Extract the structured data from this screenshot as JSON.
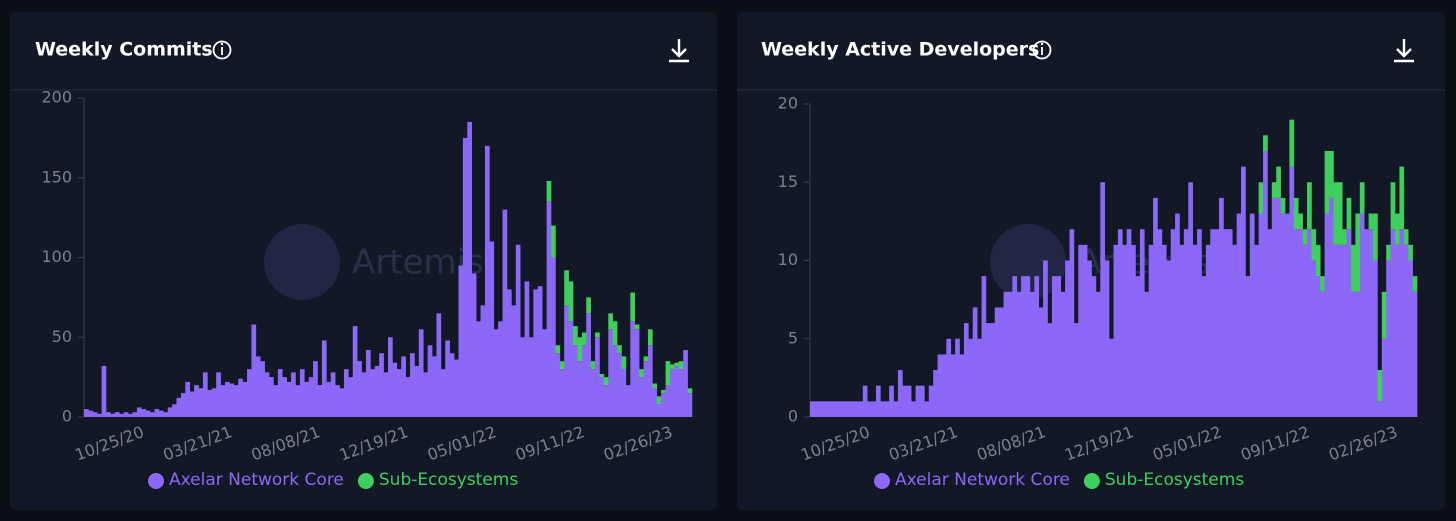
{
  "chart_data": [
    {
      "type": "bar",
      "stacked": true,
      "title": "Weekly Commits",
      "watermark": "Artemis",
      "categories": [
        null,
        null,
        null,
        null,
        null,
        null,
        null,
        null,
        null,
        null,
        null,
        null,
        null,
        "10/25/20",
        null,
        null,
        null,
        null,
        null,
        null,
        null,
        null,
        null,
        null,
        null,
        null,
        null,
        null,
        null,
        null,
        null,
        null,
        null,
        "03/21/21",
        null,
        null,
        null,
        null,
        null,
        null,
        null,
        null,
        null,
        null,
        null,
        null,
        null,
        null,
        null,
        null,
        null,
        null,
        null,
        "08/08/21",
        null,
        null,
        null,
        null,
        null,
        null,
        null,
        null,
        null,
        null,
        null,
        null,
        null,
        null,
        null,
        null,
        null,
        null,
        null,
        "12/19/21",
        null,
        null,
        null,
        null,
        null,
        null,
        null,
        null,
        null,
        null,
        null,
        null,
        null,
        null,
        null,
        null,
        null,
        null,
        null,
        "05/01/22",
        null,
        null,
        null,
        null,
        null,
        null,
        null,
        null,
        null,
        null,
        null,
        null,
        null,
        null,
        null,
        null,
        null,
        null,
        null,
        "09/11/22",
        null,
        null,
        null,
        null,
        null,
        null,
        null,
        null,
        null,
        null,
        null,
        null,
        null,
        null,
        null,
        null,
        null,
        null,
        null,
        "02/26/23",
        null,
        null,
        null,
        null
      ],
      "series": [
        {
          "name": "Axelar Network Core",
          "color": "#8b68f7",
          "values": [
            5,
            4,
            3,
            2,
            32,
            3,
            2,
            3,
            2,
            3,
            2,
            3,
            6,
            5,
            4,
            3,
            5,
            4,
            3,
            6,
            8,
            12,
            15,
            22,
            16,
            20,
            18,
            28,
            17,
            18,
            28,
            20,
            22,
            21,
            20,
            24,
            22,
            30,
            58,
            38,
            35,
            28,
            25,
            20,
            30,
            25,
            22,
            28,
            20,
            30,
            22,
            25,
            35,
            20,
            48,
            22,
            28,
            20,
            18,
            30,
            25,
            57,
            35,
            28,
            42,
            30,
            32,
            40,
            28,
            50,
            34,
            30,
            38,
            25,
            40,
            32,
            55,
            28,
            45,
            38,
            65,
            30,
            48,
            40,
            36,
            95,
            175,
            185,
            90,
            60,
            70,
            170,
            110,
            55,
            60,
            130,
            80,
            70,
            108,
            50,
            85,
            50,
            80,
            82,
            55,
            135,
            100,
            40,
            30,
            70,
            60,
            45,
            35,
            45,
            65,
            30,
            50,
            25,
            20,
            55,
            45,
            40,
            30,
            20,
            60,
            55,
            25,
            35,
            45,
            18,
            8,
            15,
            20,
            30,
            32,
            30,
            42,
            15
          ]
        },
        {
          "name": "Sub-Ecosystems",
          "color": "#3ecf5c",
          "values": [
            0,
            0,
            0,
            0,
            0,
            0,
            0,
            0,
            0,
            0,
            0,
            0,
            0,
            0,
            0,
            0,
            0,
            0,
            0,
            0,
            0,
            0,
            0,
            0,
            0,
            0,
            0,
            0,
            0,
            0,
            0,
            0,
            0,
            0,
            0,
            0,
            0,
            0,
            0,
            0,
            0,
            0,
            0,
            0,
            0,
            0,
            0,
            0,
            0,
            0,
            0,
            0,
            0,
            0,
            0,
            0,
            0,
            0,
            0,
            0,
            0,
            0,
            0,
            0,
            0,
            0,
            0,
            0,
            0,
            0,
            0,
            0,
            0,
            0,
            0,
            0,
            0,
            0,
            0,
            0,
            0,
            0,
            0,
            0,
            0,
            0,
            0,
            0,
            0,
            0,
            0,
            0,
            0,
            0,
            0,
            0,
            0,
            0,
            0,
            0,
            0,
            0,
            0,
            0,
            0,
            13,
            20,
            5,
            5,
            22,
            25,
            12,
            15,
            8,
            10,
            5,
            3,
            2,
            5,
            10,
            15,
            5,
            8,
            0,
            18,
            3,
            5,
            3,
            10,
            3,
            5,
            2,
            15,
            3,
            2,
            5,
            0,
            3
          ]
        }
      ],
      "ylim": [
        0,
        200
      ],
      "yticks": [
        0,
        50,
        100,
        150,
        200
      ]
    },
    {
      "type": "bar",
      "stacked": true,
      "title": "Weekly Active Developers",
      "watermark": "Artemis",
      "categories": [
        null,
        null,
        null,
        null,
        null,
        null,
        null,
        null,
        null,
        null,
        null,
        null,
        null,
        "10/25/20",
        null,
        null,
        null,
        null,
        null,
        null,
        null,
        null,
        null,
        null,
        null,
        null,
        null,
        null,
        null,
        null,
        null,
        null,
        null,
        "03/21/21",
        null,
        null,
        null,
        null,
        null,
        null,
        null,
        null,
        null,
        null,
        null,
        null,
        null,
        null,
        null,
        null,
        null,
        null,
        null,
        "08/08/21",
        null,
        null,
        null,
        null,
        null,
        null,
        null,
        null,
        null,
        null,
        null,
        null,
        null,
        null,
        null,
        null,
        null,
        null,
        null,
        "12/19/21",
        null,
        null,
        null,
        null,
        null,
        null,
        null,
        null,
        null,
        null,
        null,
        null,
        null,
        null,
        null,
        null,
        null,
        null,
        null,
        "05/01/22",
        null,
        null,
        null,
        null,
        null,
        null,
        null,
        null,
        null,
        null,
        null,
        null,
        null,
        null,
        null,
        null,
        null,
        null,
        null,
        "09/11/22",
        null,
        null,
        null,
        null,
        null,
        null,
        null,
        null,
        null,
        null,
        null,
        null,
        null,
        null,
        null,
        null,
        null,
        null,
        null,
        "02/26/23",
        null,
        null,
        null,
        null
      ],
      "series": [
        {
          "name": "Axelar Network Core",
          "color": "#8b68f7",
          "values": [
            1,
            1,
            1,
            1,
            1,
            1,
            1,
            1,
            1,
            1,
            1,
            1,
            2,
            1,
            1,
            2,
            1,
            1,
            2,
            1,
            3,
            2,
            2,
            1,
            2,
            2,
            1,
            2,
            3,
            4,
            4,
            5,
            4,
            5,
            4,
            6,
            5,
            7,
            5,
            9,
            6,
            6,
            7,
            7,
            8,
            8,
            9,
            8,
            9,
            9,
            8,
            9,
            7,
            10,
            6,
            9,
            9,
            8,
            10,
            12,
            6,
            11,
            11,
            10,
            9,
            8,
            15,
            10,
            5,
            11,
            12,
            11,
            12,
            11,
            9,
            12,
            8,
            11,
            14,
            12,
            11,
            10,
            12,
            13,
            11,
            12,
            15,
            11,
            12,
            9,
            11,
            12,
            12,
            14,
            12,
            12,
            11,
            13,
            16,
            9,
            13,
            11,
            13,
            17,
            12,
            14,
            14,
            13,
            13,
            16,
            12,
            12,
            11,
            12,
            10,
            9,
            8,
            13,
            14,
            11,
            11,
            11,
            12,
            8,
            8,
            13,
            12,
            12,
            10,
            1,
            5,
            10,
            12,
            11,
            12,
            11,
            10,
            8
          ]
        },
        {
          "name": "Sub-Ecosystems",
          "color": "#3ecf5c",
          "values": [
            0,
            0,
            0,
            0,
            0,
            0,
            0,
            0,
            0,
            0,
            0,
            0,
            0,
            0,
            0,
            0,
            0,
            0,
            0,
            0,
            0,
            0,
            0,
            0,
            0,
            0,
            0,
            0,
            0,
            0,
            0,
            0,
            0,
            0,
            0,
            0,
            0,
            0,
            0,
            0,
            0,
            0,
            0,
            0,
            0,
            0,
            0,
            0,
            0,
            0,
            0,
            0,
            0,
            0,
            0,
            0,
            0,
            0,
            0,
            0,
            0,
            0,
            0,
            0,
            0,
            0,
            0,
            0,
            0,
            0,
            0,
            0,
            0,
            0,
            0,
            0,
            0,
            0,
            0,
            0,
            0,
            0,
            0,
            0,
            0,
            0,
            0,
            0,
            0,
            0,
            0,
            0,
            0,
            0,
            0,
            0,
            0,
            0,
            0,
            0,
            0,
            0,
            2,
            1,
            0,
            1,
            2,
            1,
            0,
            3,
            2,
            1,
            1,
            3,
            2,
            2,
            1,
            4,
            3,
            4,
            4,
            1,
            2,
            3,
            5,
            2,
            0,
            1,
            3,
            2,
            3,
            1,
            3,
            2,
            4,
            1,
            1,
            1
          ]
        }
      ],
      "ylim": [
        0,
        20
      ],
      "yticks": [
        0,
        5,
        10,
        15,
        20
      ]
    }
  ]
}
